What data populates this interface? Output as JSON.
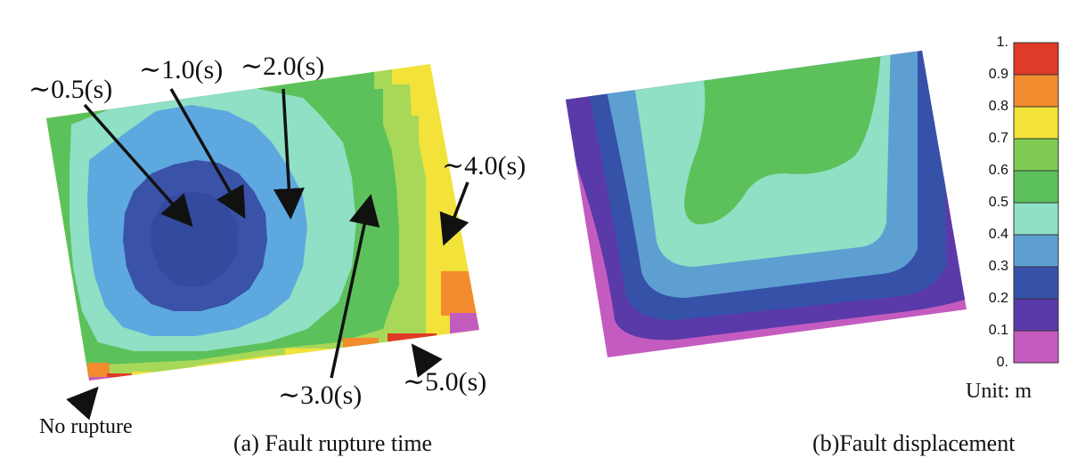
{
  "figure_a": {
    "caption": "(a) Fault rupture time",
    "annotations": [
      "∼0.5(s)",
      "∼1.0(s)",
      "∼2.0(s)",
      "∼3.0(s)",
      "∼4.0(s)",
      "∼5.0(s)"
    ],
    "no_rupture_label": "No rupture"
  },
  "figure_b": {
    "caption": "(b)Fault displacement"
  },
  "colorbar": {
    "ticks": [
      "1.",
      "0.9",
      "0.8",
      "0.7",
      "0.6",
      "0.5",
      "0.4",
      "0.3",
      "0.2",
      "0.1",
      "0."
    ],
    "colors": [
      "#e03a28",
      "#f28c2e",
      "#f2e23a",
      "#7fcb52",
      "#5cc15a",
      "#8fe0c4",
      "#5e9fd2",
      "#3651a8",
      "#5a3aa8",
      "#c45cc0"
    ],
    "unit": "Unit: m"
  },
  "palette": {
    "no_rupture": "#c45cc0",
    "t05": "#3a52a8",
    "t10": "#5ea8e0",
    "t20": "#8fe0c4",
    "t30": "#5cc15a",
    "t35": "#a8d858",
    "t40": "#f2e23a",
    "t45": "#f28c2e",
    "t50": "#e03a28"
  }
}
